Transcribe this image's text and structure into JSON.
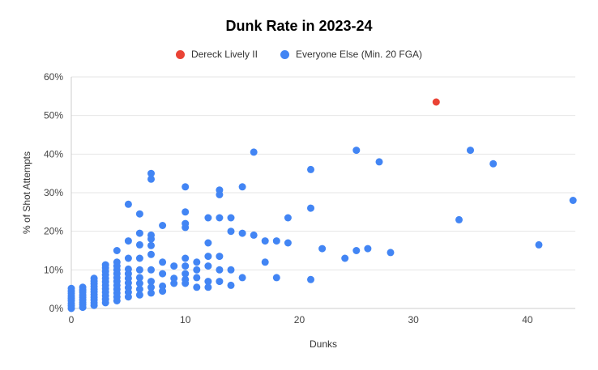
{
  "chart": {
    "title": "Dunk Rate in 2023-24",
    "xlabel": "Dunks",
    "ylabel": "% of Shot Attempts",
    "legend": [
      {
        "label": "Dereck Lively II",
        "color": "#ea4335"
      },
      {
        "label": "Everyone Else (Min. 20 FGA)",
        "color": "#4285f4"
      }
    ]
  },
  "chart_data": {
    "type": "scatter",
    "title": "Dunk Rate in 2023-24",
    "xlabel": "Dunks",
    "ylabel": "% of Shot Attempts",
    "xlim": [
      0,
      44.2
    ],
    "ylim": [
      0,
      60
    ],
    "xticks": [
      0,
      10,
      20,
      30,
      40
    ],
    "yticks": [
      0,
      10,
      20,
      30,
      40,
      50,
      60
    ],
    "ytick_suffix": "%",
    "grid": true,
    "legend_position": "top",
    "series": [
      {
        "name": "Dereck Lively II",
        "color": "#ea4335",
        "points": [
          [
            32,
            53.5
          ]
        ]
      },
      {
        "name": "Everyone Else (Min. 20 FGA)",
        "color": "#4285f4",
        "points": [
          [
            0,
            0
          ],
          [
            0,
            0.7
          ],
          [
            0,
            1.3
          ],
          [
            0,
            2
          ],
          [
            0,
            2.6
          ],
          [
            0,
            3.2
          ],
          [
            0,
            3.9
          ],
          [
            0,
            4.5
          ],
          [
            0,
            5.2
          ],
          [
            1,
            0.3
          ],
          [
            1,
            1
          ],
          [
            1,
            1.6
          ],
          [
            1,
            2.2
          ],
          [
            1,
            2.9
          ],
          [
            1,
            3.5
          ],
          [
            1,
            4.2
          ],
          [
            1,
            4.8
          ],
          [
            1,
            5.5
          ],
          [
            2,
            0.8
          ],
          [
            2,
            1.5
          ],
          [
            2,
            2.2
          ],
          [
            2,
            2.9
          ],
          [
            2,
            3.6
          ],
          [
            2,
            4.3
          ],
          [
            2,
            5
          ],
          [
            2,
            5.7
          ],
          [
            2,
            6.4
          ],
          [
            2,
            7.1
          ],
          [
            2,
            7.8
          ],
          [
            3,
            1.5
          ],
          [
            3,
            2.4
          ],
          [
            3,
            3.3
          ],
          [
            3,
            4.2
          ],
          [
            3,
            5.1
          ],
          [
            3,
            6
          ],
          [
            3,
            6.9
          ],
          [
            3,
            7.8
          ],
          [
            3,
            8.7
          ],
          [
            3,
            9.6
          ],
          [
            3,
            10.5
          ],
          [
            3,
            11.3
          ],
          [
            4,
            2
          ],
          [
            4,
            3
          ],
          [
            4,
            4
          ],
          [
            4,
            5
          ],
          [
            4,
            6
          ],
          [
            4,
            7
          ],
          [
            4,
            8
          ],
          [
            4,
            9
          ],
          [
            4,
            10
          ],
          [
            4,
            11
          ],
          [
            4,
            12
          ],
          [
            4,
            15
          ],
          [
            5,
            3
          ],
          [
            5,
            4.2
          ],
          [
            5,
            5.4
          ],
          [
            5,
            6.6
          ],
          [
            5,
            7.8
          ],
          [
            5,
            9
          ],
          [
            5,
            10.2
          ],
          [
            5,
            13
          ],
          [
            5,
            17.5
          ],
          [
            5,
            27
          ],
          [
            6,
            3.5
          ],
          [
            6,
            5
          ],
          [
            6,
            6.5
          ],
          [
            6,
            8
          ],
          [
            6,
            10
          ],
          [
            6,
            13
          ],
          [
            6,
            16.5
          ],
          [
            6,
            19.5
          ],
          [
            6,
            24.5
          ],
          [
            7,
            4
          ],
          [
            7,
            5.5
          ],
          [
            7,
            7
          ],
          [
            7,
            10
          ],
          [
            7,
            14
          ],
          [
            7,
            16.3
          ],
          [
            7,
            18
          ],
          [
            7,
            19
          ],
          [
            7,
            33.5
          ],
          [
            7,
            35
          ],
          [
            8,
            4.5
          ],
          [
            8,
            5.8
          ],
          [
            8,
            9
          ],
          [
            8,
            12
          ],
          [
            8,
            21.5
          ],
          [
            9,
            6.5
          ],
          [
            9,
            7.8
          ],
          [
            9,
            11
          ],
          [
            10,
            6.5
          ],
          [
            10,
            7.5
          ],
          [
            10,
            9
          ],
          [
            10,
            11
          ],
          [
            10,
            13
          ],
          [
            10,
            21
          ],
          [
            10,
            22
          ],
          [
            10,
            25
          ],
          [
            10,
            31.5
          ],
          [
            11,
            5.5
          ],
          [
            11,
            8
          ],
          [
            11,
            10
          ],
          [
            11,
            12
          ],
          [
            12,
            5.5
          ],
          [
            12,
            7
          ],
          [
            12,
            11
          ],
          [
            12,
            13.5
          ],
          [
            12,
            17
          ],
          [
            12,
            23.5
          ],
          [
            13,
            7
          ],
          [
            13,
            10
          ],
          [
            13,
            13.5
          ],
          [
            13,
            23.5
          ],
          [
            13,
            29.5
          ],
          [
            13,
            30.7
          ],
          [
            14,
            6
          ],
          [
            14,
            10
          ],
          [
            14,
            20
          ],
          [
            14,
            23.5
          ],
          [
            15,
            8
          ],
          [
            15,
            19.5
          ],
          [
            15,
            31.5
          ],
          [
            16,
            19
          ],
          [
            16,
            40.5
          ],
          [
            17,
            12
          ],
          [
            17,
            17.5
          ],
          [
            18,
            8
          ],
          [
            18,
            17.5
          ],
          [
            19,
            17
          ],
          [
            19,
            23.5
          ],
          [
            21,
            7.5
          ],
          [
            21,
            26
          ],
          [
            21,
            36
          ],
          [
            22,
            15.5
          ],
          [
            24,
            13
          ],
          [
            25,
            15
          ],
          [
            25,
            41
          ],
          [
            26,
            15.5
          ],
          [
            27,
            38
          ],
          [
            28,
            14.5
          ],
          [
            34,
            23
          ],
          [
            35,
            41
          ],
          [
            37,
            37.5
          ],
          [
            41,
            16.5
          ],
          [
            44,
            28
          ]
        ]
      }
    ]
  }
}
